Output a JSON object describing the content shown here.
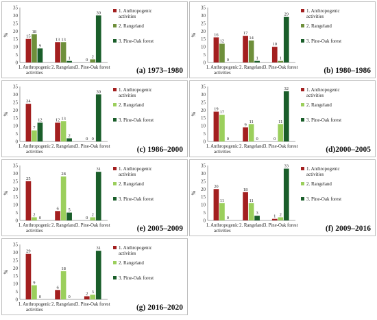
{
  "colors": {
    "anthropogenic": "#a31f1f",
    "rangeland_dark": "#6e8f3b",
    "rangeland_light": "#9bcf5c",
    "pine_oak": "#1a5e2a"
  },
  "chart_data": [
    {
      "type": "bar",
      "panel_label": "(a) 1973–1980",
      "ylabel": "%",
      "ylim": [
        0,
        35
      ],
      "yticks": [
        0,
        5,
        10,
        15,
        20,
        25,
        30,
        35
      ],
      "categories": [
        "1. Anthropogenic activities",
        "2. Rangeland",
        "3. Pine-Oak forest"
      ],
      "category_lines": [
        [
          "1. Anthropogenic",
          "activities"
        ],
        [
          "2. Rangeland"
        ],
        [
          "3. Pine-Oak forest"
        ]
      ],
      "series": [
        {
          "name": "1. Anthropogenic activities",
          "legend_lines": [
            "1. Anthropogenic",
            "activities"
          ],
          "color": "#a31f1f",
          "values": [
            15,
            13,
            0
          ]
        },
        {
          "name": "2. Rangeland",
          "legend_lines": [
            "2. Rangeland"
          ],
          "color": "#6e8f3b",
          "values": [
            18,
            13,
            2
          ]
        },
        {
          "name": "3. Pine-Oak forest",
          "legend_lines": [
            "3. Pine-Oak forest"
          ],
          "color": "#1a5e2a",
          "values": [
            9,
            1,
            30
          ]
        }
      ]
    },
    {
      "type": "bar",
      "panel_label": "(b) 1980–1986",
      "ylabel": "%",
      "ylim": [
        0,
        35
      ],
      "yticks": [
        0,
        5,
        10,
        15,
        20,
        25,
        30,
        35
      ],
      "categories": [
        "1. Anthropogenic activities",
        "2. Rangeland",
        "3. Pine-Oak forest"
      ],
      "category_lines": [
        [
          "1. Anthropogenic",
          "activities"
        ],
        [
          "2. Rangeland"
        ],
        [
          "3. Pine-Oak forest"
        ]
      ],
      "series": [
        {
          "name": "1. Anthropogenic activities",
          "legend_lines": [
            "1. Anthropogenic",
            "activities"
          ],
          "color": "#a31f1f",
          "values": [
            16,
            17,
            10
          ]
        },
        {
          "name": "2. Rangeland",
          "legend_lines": [
            "2. Rangeland"
          ],
          "color": "#6e8f3b",
          "values": [
            12,
            14,
            1
          ]
        },
        {
          "name": "3. Pine-Oak forest",
          "legend_lines": [
            "3. Pine-Oak forest"
          ],
          "color": "#1a5e2a",
          "values": [
            0,
            1,
            29
          ]
        }
      ]
    },
    {
      "type": "bar",
      "panel_label": "(c) 1986–2000",
      "ylabel": "%",
      "ylim": [
        0,
        35
      ],
      "yticks": [
        0,
        5,
        10,
        15,
        20,
        25,
        30,
        35
      ],
      "categories": [
        "1. Anthropogenic activities",
        "2. Rangeland",
        "3. Pine-Oak forest"
      ],
      "category_lines": [
        [
          "1. Anthropogenic",
          "activities"
        ],
        [
          "2. Rangeland"
        ],
        [
          "3. Pine-Oak forest"
        ]
      ],
      "series": [
        {
          "name": "1. Anthropogenic activities",
          "legend_lines": [
            "1. Anthropogenic",
            "activities"
          ],
          "color": "#a31f1f",
          "values": [
            24,
            12,
            0
          ]
        },
        {
          "name": "2. Rangeland",
          "legend_lines": [
            "2. Rangeland"
          ],
          "color": "#9bcf5c",
          "values": [
            7,
            13,
            0
          ]
        },
        {
          "name": "3. Pine-Oak forest",
          "legend_lines": [
            "3. Pine-Oak forest"
          ],
          "color": "#1a5e2a",
          "values": [
            12,
            2,
            30
          ]
        }
      ]
    },
    {
      "type": "bar",
      "panel_label": "(d)2000–2005",
      "ylabel": "%",
      "ylim": [
        0,
        35
      ],
      "yticks": [
        0,
        5,
        10,
        15,
        20,
        25,
        30,
        35
      ],
      "categories": [
        "1. Anthropogenic activities",
        "2. Rangeland",
        "3. Pine-Oak forest"
      ],
      "category_lines": [
        [
          "1. Anthropogenic",
          "activities"
        ],
        [
          "2. Rangeland"
        ],
        [
          "3. Pine-Oak forest"
        ]
      ],
      "series": [
        {
          "name": "1. Anthropogenic activities",
          "legend_lines": [
            "1. Anthropogenic",
            "activities"
          ],
          "color": "#a31f1f",
          "values": [
            19,
            9,
            0
          ]
        },
        {
          "name": "2. Rangeland",
          "legend_lines": [
            "2. Rangeland"
          ],
          "color": "#9bcf5c",
          "values": [
            17,
            11,
            11
          ]
        },
        {
          "name": "3. Pine-Oak forest",
          "legend_lines": [
            "3. Pine-Oak forest"
          ],
          "color": "#1a5e2a",
          "values": [
            0,
            0,
            32
          ]
        }
      ]
    },
    {
      "type": "bar",
      "panel_label": "(e) 2005–2009",
      "ylabel": "%",
      "ylim": [
        0,
        35
      ],
      "yticks": [
        0,
        5,
        10,
        15,
        20,
        25,
        30,
        35
      ],
      "categories": [
        "1. Anthropogenic activities",
        "2. Rangeland",
        "3. Pine-Oak forest"
      ],
      "category_lines": [
        [
          "1. Anthropogenic",
          "activities"
        ],
        [
          "2. Rangeland"
        ],
        [
          "3. Pine-Oak forest"
        ]
      ],
      "series": [
        {
          "name": "1. Anthropogenic activities",
          "legend_lines": [
            "1. Anthropogenic",
            "activities"
          ],
          "color": "#a31f1f",
          "values": [
            25,
            6,
            0
          ]
        },
        {
          "name": "2. Rangeland",
          "legend_lines": [
            "2. Rangeland"
          ],
          "color": "#9bcf5c",
          "values": [
            2,
            28,
            2
          ]
        },
        {
          "name": "3. Pine-Oak forest",
          "legend_lines": [
            "3. Pine-Oak forest"
          ],
          "color": "#1a5e2a",
          "values": [
            0,
            5,
            31
          ]
        }
      ]
    },
    {
      "type": "bar",
      "panel_label": "(f) 2009–2016",
      "ylabel": "%",
      "ylim": [
        0,
        35
      ],
      "yticks": [
        0,
        5,
        10,
        15,
        20,
        25,
        30,
        35
      ],
      "categories": [
        "1. Anthropogenic activities",
        "2. Rangeland",
        "3. Pine-Oak forest"
      ],
      "category_lines": [
        [
          "1. Anthropogenic",
          "activities"
        ],
        [
          "2. Rangeland"
        ],
        [
          "3. Pine-Oak forest"
        ]
      ],
      "series": [
        {
          "name": "1. Anthropogenic activities",
          "legend_lines": [
            "1. Anthropogenic",
            "activities"
          ],
          "color": "#a31f1f",
          "values": [
            20,
            18,
            1
          ]
        },
        {
          "name": "2. Rangeland",
          "legend_lines": [
            "2. Rangeland"
          ],
          "color": "#9bcf5c",
          "values": [
            11,
            11,
            2
          ]
        },
        {
          "name": "3. Pine-Oak forest",
          "legend_lines": [
            "3. Pine-Oak forest"
          ],
          "color": "#1a5e2a",
          "values": [
            0,
            3,
            33
          ]
        }
      ]
    },
    {
      "type": "bar",
      "panel_label": "(g) 2016–2020",
      "ylabel": "%",
      "ylim": [
        0,
        35
      ],
      "yticks": [
        0,
        5,
        10,
        15,
        20,
        25,
        30,
        35
      ],
      "categories": [
        "1. Anthropogenic activities",
        "2. Rangeland",
        "3. Pine-Oak forest"
      ],
      "category_lines": [
        [
          "1. Anthropogenic",
          "activities"
        ],
        [
          "2. Rangeland"
        ],
        [
          "3. Pine-Oak forest"
        ]
      ],
      "series": [
        {
          "name": "1. Anthropogenic activities",
          "legend_lines": [
            "1. Anthropogenic",
            "activities"
          ],
          "color": "#a31f1f",
          "values": [
            29,
            6,
            2
          ]
        },
        {
          "name": "2. Rangeland",
          "legend_lines": [
            "2. Rangeland"
          ],
          "color": "#9bcf5c",
          "values": [
            9,
            18,
            3
          ]
        },
        {
          "name": "3. Pine-Oak forest",
          "legend_lines": [
            "3. Pine-Oak forest"
          ],
          "color": "#1a5e2a",
          "values": [
            0,
            0,
            31
          ]
        }
      ]
    }
  ]
}
